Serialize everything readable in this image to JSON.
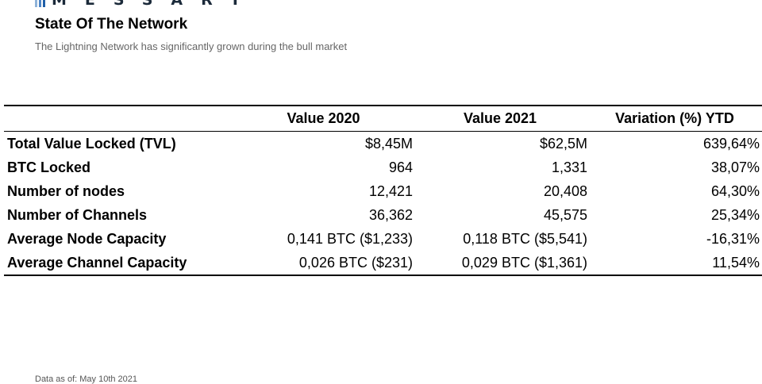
{
  "brand": {
    "wordmark": "MESSART",
    "logo_icon": "messari-bars-icon",
    "logo_colors": [
      "#8fb3d9",
      "#4f86c6",
      "#1f5fa8"
    ]
  },
  "header": {
    "title": "State Of The Network",
    "subtitle": "The Lightning Network has significantly grown during the bull market"
  },
  "table": {
    "columns": [
      "",
      "Value 2020",
      "Value 2021",
      "Variation (%) YTD"
    ],
    "rows": [
      {
        "label": "Total Value Locked (TVL)",
        "v2020": "$8,45M",
        "v2021": "$62,5M",
        "variation": "639,64%"
      },
      {
        "label": "BTC Locked",
        "v2020": "964",
        "v2021": "1,331",
        "variation": "38,07%"
      },
      {
        "label": "Number of nodes",
        "v2020": "12,421",
        "v2021": "20,408",
        "variation": "64,30%"
      },
      {
        "label": "Number of Channels",
        "v2020": "36,362",
        "v2021": "45,575",
        "variation": "25,34%"
      },
      {
        "label": "Average Node Capacity",
        "v2020": "0,141 BTC ($1,233)",
        "v2021": "0,118 BTC ($5,541)",
        "variation": "-16,31%"
      },
      {
        "label": "Average Channel Capacity",
        "v2020": "0,026 BTC ($231)",
        "v2021": "0,029 BTC ($1,361)",
        "variation": "11,54%"
      }
    ]
  },
  "footer": {
    "note": "Data as of: May 10th 2021"
  }
}
